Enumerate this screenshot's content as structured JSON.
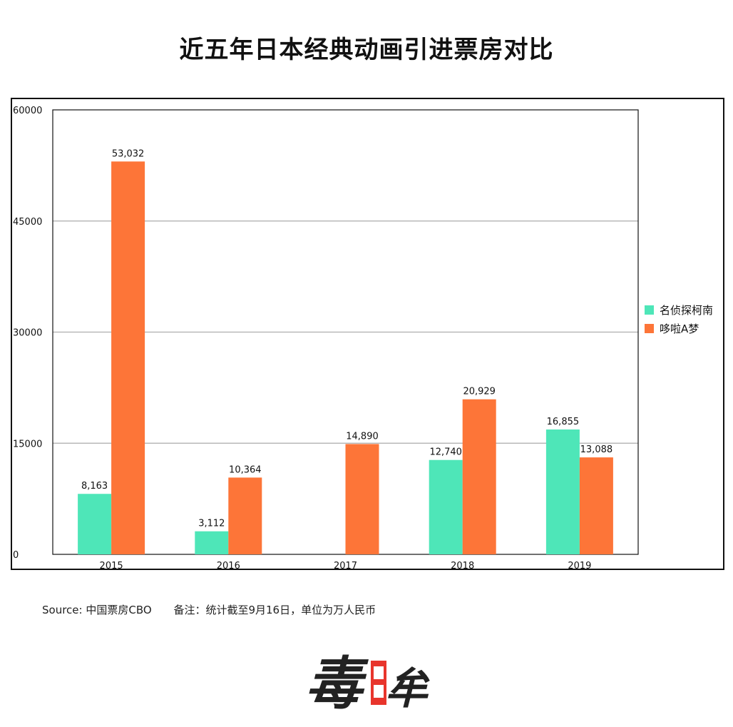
{
  "title": "近五年日本经典动画引进票房对比",
  "footer": {
    "source": "Source: 中国票房CBO",
    "note": "备注：统计截至9月16日，单位为万人民币"
  },
  "logo": {
    "text": "毒眸",
    "colors": [
      "#222222",
      "#e8352c"
    ]
  },
  "chart_data": {
    "type": "bar",
    "title": "近五年日本经典动画引进票房对比",
    "categories": [
      "2015",
      "2016",
      "2017",
      "2018",
      "2019"
    ],
    "series": [
      {
        "name": "名侦探柯南",
        "color": "#4ee6b8",
        "values": [
          8163,
          3112,
          null,
          12740,
          16855
        ],
        "labels": [
          "8,163",
          "3,112",
          "",
          "12,740",
          "16,855"
        ]
      },
      {
        "name": "哆啦A梦",
        "color": "#fd7538",
        "values": [
          53032,
          10364,
          14890,
          20929,
          13088
        ],
        "labels": [
          "53,032",
          "10,364",
          "14,890",
          "20,929",
          "13,088"
        ]
      }
    ],
    "ylim": [
      0,
      60000
    ],
    "yticks": [
      0,
      15000,
      30000,
      45000,
      60000
    ],
    "ytick_labels": [
      "0",
      "15000",
      "30000",
      "45000",
      "60000"
    ],
    "grid": true,
    "legend_position": "right"
  }
}
